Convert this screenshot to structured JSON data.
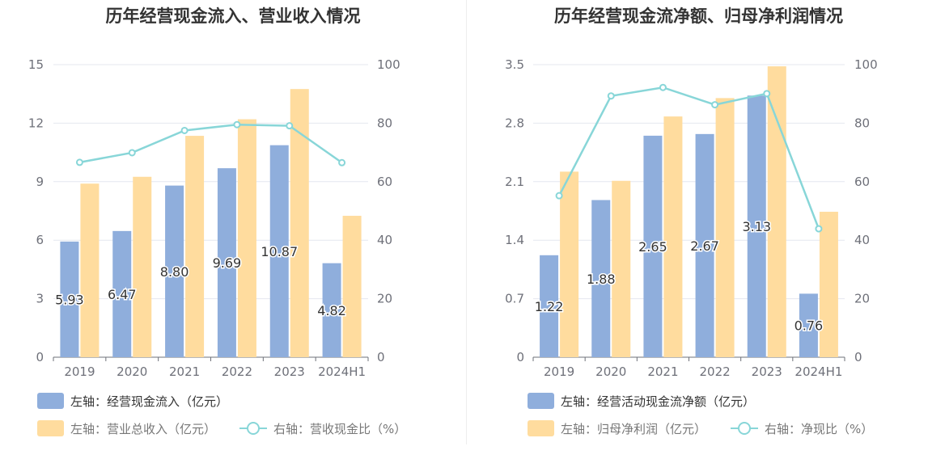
{
  "chart_data": [
    {
      "type": "bar",
      "title": "历年经营现金流入、营业收入情况",
      "categories": [
        "2019",
        "2020",
        "2021",
        "2022",
        "2023",
        "2024H1"
      ],
      "left_axis": {
        "min": 0,
        "max": 15,
        "ticks": [
          "0",
          "3",
          "6",
          "9",
          "12",
          "15"
        ]
      },
      "right_axis": {
        "min": 0,
        "max": 100,
        "ticks": [
          "0",
          "20",
          "40",
          "60",
          "80",
          "100"
        ]
      },
      "series": [
        {
          "name": "左轴：经营现金流入（亿元）",
          "type": "bar",
          "axis": "left",
          "color": "#8faedc",
          "values": [
            5.93,
            6.47,
            8.8,
            9.69,
            10.87,
            4.82
          ],
          "labels": [
            "5.93",
            "6.47",
            "8.80",
            "9.69",
            "10.87",
            "4.82"
          ]
        },
        {
          "name": "左轴：营业总收入（亿元）",
          "type": "bar",
          "axis": "left",
          "color": "#ffdc9e",
          "values": [
            8.9,
            9.25,
            11.35,
            12.2,
            13.75,
            7.25
          ]
        },
        {
          "name": "右轴：营收现金比（%）",
          "type": "line",
          "axis": "right",
          "color": "#88d6d8",
          "values": [
            66.6,
            69.9,
            77.5,
            79.5,
            79.1,
            66.5
          ]
        }
      ]
    },
    {
      "type": "bar",
      "title": "历年经营现金流净额、归母净利润情况",
      "categories": [
        "2019",
        "2020",
        "2021",
        "2022",
        "2023",
        "2024H1"
      ],
      "left_axis": {
        "min": 0,
        "max": 3.5,
        "ticks": [
          "0",
          "0.7",
          "1.4",
          "2.1",
          "2.8",
          "3.5"
        ]
      },
      "right_axis": {
        "min": 0,
        "max": 100,
        "ticks": [
          "0",
          "20",
          "40",
          "60",
          "80",
          "100"
        ]
      },
      "series": [
        {
          "name": "左轴：经营活动现金流净额（亿元）",
          "type": "bar",
          "axis": "left",
          "color": "#8faedc",
          "values": [
            1.22,
            1.88,
            2.65,
            2.67,
            3.13,
            0.76
          ],
          "labels": [
            "1.22",
            "1.88",
            "2.65",
            "2.67",
            "3.13",
            "0.76"
          ]
        },
        {
          "name": "左轴：归母净利润（亿元）",
          "type": "bar",
          "axis": "left",
          "color": "#ffdc9e",
          "values": [
            2.22,
            2.11,
            2.88,
            3.1,
            3.48,
            1.74
          ]
        },
        {
          "name": "右轴：净现比（%）",
          "type": "line",
          "axis": "right",
          "color": "#88d6d8",
          "values": [
            55.2,
            89.3,
            92.2,
            86.3,
            90.1,
            43.9
          ]
        }
      ]
    }
  ]
}
